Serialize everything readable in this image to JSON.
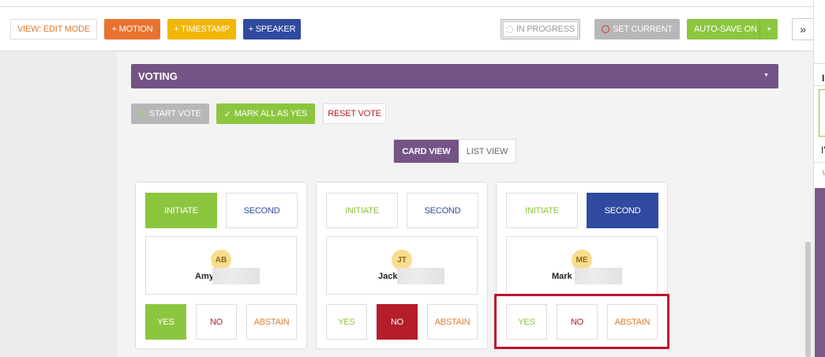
{
  "toolbar": {
    "view_mode": "VIEW: EDIT MODE",
    "motion": "+ MOTION",
    "timestamp": "+ TIMESTAMP",
    "speaker": "+ SPEAKER",
    "in_progress": "IN PROGRESS",
    "set_current": "SET CURRENT",
    "auto_save": "AUTO-SAVE ON",
    "expand": "»"
  },
  "right_panel": {
    "t1": "I",
    "t2": "I'",
    "t3": "\\"
  },
  "voting": {
    "title": "VOTING",
    "start_vote": "START VOTE",
    "mark_all_yes": "MARK ALL AS YES",
    "reset_vote": "RESET VOTE",
    "card_view": "CARD VIEW",
    "list_view": "LIST VIEW"
  },
  "cards": [
    {
      "initials": "AB",
      "name": "Amy",
      "initiate": "INITIATE",
      "second": "SECOND",
      "yes": "YES",
      "no": "NO",
      "abstain": "ABSTAIN",
      "motion_role": "initiate",
      "vote": "yes"
    },
    {
      "initials": "JT",
      "name": "Jack",
      "initiate": "INITIATE",
      "second": "SECOND",
      "yes": "YES",
      "no": "NO",
      "abstain": "ABSTAIN",
      "motion_role": "none",
      "vote": "no"
    },
    {
      "initials": "ME",
      "name": "Mark",
      "initiate": "INITIATE",
      "second": "SECOND",
      "yes": "YES",
      "no": "NO",
      "abstain": "ABSTAIN",
      "motion_role": "second",
      "vote": "none"
    }
  ],
  "colors": {
    "purple": "#745386",
    "green": "#8cc63f",
    "blue": "#2f4a9e",
    "red": "#b51d2a",
    "orange": "#e8732f",
    "yellow": "#f2b705",
    "highlight": "#c0152e"
  }
}
